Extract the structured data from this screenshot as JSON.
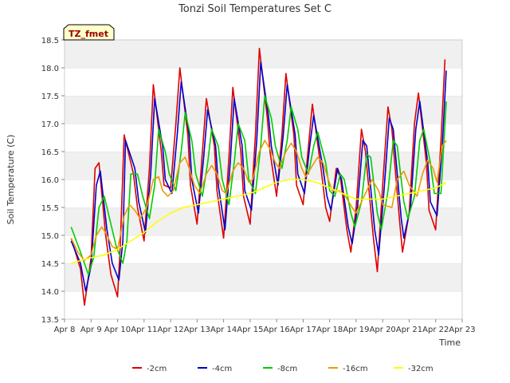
{
  "chart_data": {
    "type": "line",
    "title": "Tonzi Soil Temperatures Set C",
    "xlabel": "Time",
    "ylabel": "Soil Temperature (C)",
    "badge": "TZ_fmet",
    "x_ticks": [
      "Apr 8",
      "Apr 9",
      "Apr 10",
      "Apr 11",
      "Apr 12",
      "Apr 13",
      "Apr 14",
      "Apr 15",
      "Apr 16",
      "Apr 17",
      "Apr 18",
      "Apr 19",
      "Apr 20",
      "Apr 21",
      "Apr 22",
      "Apr 23"
    ],
    "y_ticks": [
      "13.5",
      "14.0",
      "14.5",
      "15.0",
      "15.5",
      "16.0",
      "16.5",
      "17.0",
      "17.5",
      "18.0",
      "18.5"
    ],
    "xlim": [
      8,
      23
    ],
    "ylim": [
      13.5,
      18.5
    ],
    "grid": true,
    "legend_position": "bottom",
    "series": [
      {
        "name": "-2cm",
        "color": "#dd0000",
        "x": [
          8.25,
          8.6,
          8.75,
          9.0,
          9.15,
          9.3,
          9.55,
          9.75,
          10.0,
          10.1,
          10.25,
          10.6,
          10.75,
          11.0,
          11.2,
          11.35,
          11.65,
          11.75,
          12.0,
          12.2,
          12.35,
          12.65,
          12.75,
          13.0,
          13.2,
          13.35,
          13.65,
          13.75,
          14.0,
          14.2,
          14.35,
          14.65,
          14.75,
          15.0,
          15.2,
          15.35,
          15.65,
          15.75,
          16.0,
          16.2,
          16.35,
          16.65,
          16.75,
          17.0,
          17.2,
          17.35,
          17.7,
          17.85,
          18.0,
          18.25,
          18.4,
          18.65,
          18.8,
          19.0,
          19.2,
          19.35,
          19.65,
          19.8,
          20.0,
          20.2,
          20.35,
          20.65,
          20.75,
          21.0,
          21.2,
          21.35,
          21.65,
          21.75,
          22.0,
          22.2,
          22.35
        ],
        "y": [
          14.95,
          14.4,
          13.75,
          14.6,
          16.2,
          16.3,
          15.0,
          14.3,
          13.9,
          14.8,
          16.8,
          16.1,
          15.5,
          14.9,
          16.2,
          17.7,
          16.5,
          15.9,
          15.85,
          17.0,
          18.0,
          16.8,
          15.9,
          15.2,
          16.5,
          17.45,
          16.6,
          15.8,
          14.95,
          16.4,
          17.65,
          16.5,
          15.7,
          15.2,
          16.8,
          18.35,
          17.1,
          16.5,
          15.7,
          16.8,
          17.9,
          16.8,
          15.9,
          15.55,
          16.6,
          17.35,
          16.1,
          15.5,
          15.25,
          16.2,
          16.05,
          15.1,
          14.7,
          15.5,
          16.9,
          16.5,
          14.95,
          14.35,
          15.9,
          17.3,
          16.9,
          15.2,
          14.7,
          15.4,
          17.0,
          17.55,
          16.3,
          15.45,
          15.1,
          16.7,
          18.15
        ]
      },
      {
        "name": "-4cm",
        "color": "#0000cc",
        "x": [
          8.25,
          8.6,
          8.8,
          9.0,
          9.2,
          9.35,
          9.6,
          9.8,
          10.05,
          10.2,
          10.3,
          10.65,
          10.8,
          11.05,
          11.25,
          11.4,
          11.7,
          11.8,
          12.05,
          12.25,
          12.4,
          12.7,
          12.8,
          13.05,
          13.25,
          13.4,
          13.7,
          13.8,
          14.05,
          14.25,
          14.4,
          14.7,
          14.8,
          15.05,
          15.25,
          15.4,
          15.7,
          15.8,
          16.05,
          16.25,
          16.4,
          16.7,
          16.8,
          17.05,
          17.25,
          17.4,
          17.75,
          17.9,
          18.05,
          18.3,
          18.45,
          18.7,
          18.85,
          19.05,
          19.25,
          19.4,
          19.7,
          19.85,
          20.05,
          20.25,
          20.4,
          20.7,
          20.8,
          21.05,
          21.25,
          21.4,
          21.7,
          21.8,
          22.05,
          22.25,
          22.4
        ],
        "y": [
          14.9,
          14.5,
          14.0,
          14.45,
          15.9,
          16.15,
          15.1,
          14.5,
          14.2,
          14.9,
          16.7,
          16.2,
          15.6,
          15.05,
          16.1,
          17.45,
          16.6,
          16.0,
          15.75,
          16.8,
          17.75,
          16.8,
          16.0,
          15.4,
          16.4,
          17.25,
          16.6,
          15.9,
          15.1,
          16.3,
          17.45,
          16.6,
          15.8,
          15.45,
          16.7,
          18.1,
          17.1,
          16.6,
          15.9,
          16.8,
          17.7,
          16.8,
          16.1,
          15.75,
          16.6,
          17.15,
          16.2,
          15.7,
          15.45,
          16.2,
          16.0,
          15.15,
          14.85,
          15.5,
          16.7,
          16.6,
          15.1,
          14.65,
          15.8,
          17.1,
          16.9,
          15.3,
          14.95,
          15.5,
          16.9,
          17.4,
          16.3,
          15.6,
          15.35,
          16.6,
          17.95
        ]
      },
      {
        "name": "-8cm",
        "color": "#00cc00",
        "x": [
          8.25,
          8.6,
          8.9,
          9.1,
          9.3,
          9.5,
          9.75,
          9.95,
          10.2,
          10.35,
          10.5,
          10.75,
          10.95,
          11.2,
          11.4,
          11.55,
          11.8,
          11.95,
          12.2,
          12.4,
          12.55,
          12.8,
          12.95,
          13.2,
          13.4,
          13.55,
          13.8,
          13.95,
          14.2,
          14.4,
          14.55,
          14.8,
          14.95,
          15.2,
          15.4,
          15.55,
          15.8,
          15.95,
          16.2,
          16.4,
          16.55,
          16.8,
          16.95,
          17.2,
          17.4,
          17.55,
          17.85,
          18.0,
          18.2,
          18.4,
          18.55,
          18.8,
          18.95,
          19.2,
          19.4,
          19.55,
          19.8,
          19.95,
          20.2,
          20.4,
          20.55,
          20.8,
          20.95,
          21.2,
          21.4,
          21.55,
          21.8,
          21.95,
          22.2,
          22.4
        ],
        "y": [
          15.15,
          14.7,
          14.3,
          14.6,
          15.5,
          15.7,
          15.2,
          14.8,
          14.5,
          14.9,
          16.1,
          16.1,
          15.7,
          15.3,
          15.9,
          16.9,
          16.5,
          16.1,
          15.8,
          16.5,
          17.2,
          16.7,
          16.1,
          15.7,
          16.3,
          16.9,
          16.6,
          16.0,
          15.55,
          16.3,
          17.0,
          16.7,
          16.0,
          15.75,
          16.6,
          17.5,
          17.1,
          16.6,
          16.2,
          16.7,
          17.3,
          16.9,
          16.4,
          16.1,
          16.6,
          16.85,
          16.3,
          15.8,
          15.7,
          16.1,
          16.0,
          15.4,
          15.15,
          15.6,
          16.45,
          16.4,
          15.4,
          15.1,
          15.8,
          16.7,
          16.6,
          15.6,
          15.3,
          15.7,
          16.7,
          16.9,
          16.3,
          15.75,
          15.75,
          17.4
        ]
      },
      {
        "name": "-16cm",
        "color": "#ee9900",
        "x": [
          8.25,
          8.5,
          8.75,
          9.0,
          9.2,
          9.4,
          9.55,
          9.8,
          10.0,
          10.25,
          10.45,
          10.65,
          10.85,
          11.1,
          11.35,
          11.55,
          11.7,
          11.9,
          12.1,
          12.35,
          12.55,
          12.7,
          12.9,
          13.1,
          13.35,
          13.55,
          13.75,
          13.95,
          14.1,
          14.35,
          14.55,
          14.75,
          14.95,
          15.1,
          15.35,
          15.55,
          15.75,
          15.95,
          16.1,
          16.35,
          16.55,
          16.75,
          16.95,
          17.1,
          17.35,
          17.55,
          17.75,
          17.95,
          18.1,
          18.35,
          18.6,
          18.85,
          19.0,
          19.35,
          19.6,
          19.85,
          20.0,
          20.35,
          20.55,
          20.8,
          21.0,
          21.3,
          21.5,
          21.7,
          21.9,
          22.05,
          22.25,
          22.4
        ],
        "y": [
          14.95,
          14.7,
          14.55,
          14.65,
          15.0,
          15.15,
          15.05,
          14.8,
          14.75,
          15.35,
          15.55,
          15.45,
          15.3,
          15.5,
          16.0,
          16.05,
          15.8,
          15.7,
          15.8,
          16.3,
          16.4,
          16.2,
          15.9,
          15.75,
          16.1,
          16.25,
          16.1,
          15.8,
          15.75,
          16.15,
          16.3,
          16.2,
          15.95,
          16.0,
          16.5,
          16.7,
          16.55,
          16.3,
          16.2,
          16.5,
          16.65,
          16.5,
          16.2,
          16.05,
          16.25,
          16.4,
          16.3,
          16.0,
          15.8,
          15.8,
          15.7,
          15.5,
          15.4,
          15.75,
          16.0,
          15.8,
          15.55,
          15.5,
          16.0,
          16.15,
          15.9,
          15.7,
          16.1,
          16.35,
          16.2,
          15.95,
          16.6,
          16.7
        ]
      },
      {
        "name": "-32cm",
        "color": "#ffff00",
        "x": [
          8.25,
          8.6,
          9.0,
          9.5,
          10.0,
          10.5,
          11.0,
          11.5,
          12.0,
          12.5,
          13.0,
          13.5,
          14.0,
          14.5,
          15.0,
          15.5,
          16.0,
          16.5,
          17.0,
          17.5,
          18.0,
          18.5,
          19.0,
          19.5,
          20.0,
          20.5,
          21.0,
          21.5,
          22.0,
          22.4
        ],
        "y": [
          14.5,
          14.55,
          14.6,
          14.65,
          14.75,
          14.9,
          15.05,
          15.25,
          15.4,
          15.5,
          15.55,
          15.6,
          15.65,
          15.7,
          15.75,
          15.85,
          15.95,
          16.0,
          16.0,
          15.95,
          15.85,
          15.75,
          15.65,
          15.65,
          15.65,
          15.7,
          15.75,
          15.8,
          15.85,
          15.95
        ]
      }
    ]
  }
}
